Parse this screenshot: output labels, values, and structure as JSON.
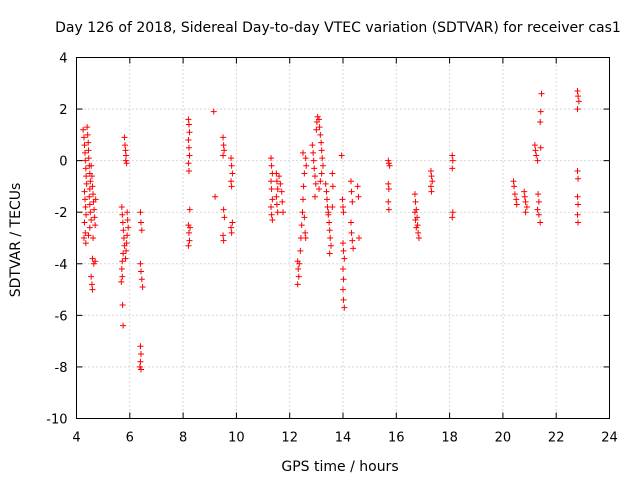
{
  "chart_data": {
    "type": "scatter",
    "title": "Day 126 of 2018, Sidereal Day-to-day VTEC variation (SDTVAR) for receiver cas1",
    "xlabel": "GPS time / hours",
    "ylabel": "SDTVAR / TECUs",
    "xlim": [
      4,
      24
    ],
    "ylim": [
      -10,
      4
    ],
    "xticks": [
      "4",
      "6",
      "8",
      "10",
      "12",
      "14",
      "16",
      "18",
      "20",
      "22",
      "24"
    ],
    "yticks": [
      "-10",
      "-8",
      "-6",
      "-4",
      "-2",
      "0",
      "2",
      "4"
    ],
    "grid": true,
    "marker": "+",
    "color": "#ff0000",
    "series": [
      {
        "name": "SDTVAR",
        "points": [
          [
            4.25,
            1.2
          ],
          [
            4.28,
            0.9
          ],
          [
            4.3,
            0.6
          ],
          [
            4.32,
            0.3
          ],
          [
            4.33,
            0.0
          ],
          [
            4.35,
            -0.3
          ],
          [
            4.36,
            -0.6
          ],
          [
            4.38,
            -0.9
          ],
          [
            4.3,
            -1.2
          ],
          [
            4.32,
            -1.5
          ],
          [
            4.34,
            -1.8
          ],
          [
            4.36,
            -2.1
          ],
          [
            4.3,
            -2.4
          ],
          [
            4.33,
            -2.8
          ],
          [
            4.28,
            -3.0
          ],
          [
            4.35,
            -3.2
          ],
          [
            4.4,
            1.3
          ],
          [
            4.42,
            1.0
          ],
          [
            4.44,
            0.7
          ],
          [
            4.45,
            0.4
          ],
          [
            4.46,
            0.1
          ],
          [
            4.48,
            -0.2
          ],
          [
            4.5,
            -0.5
          ],
          [
            4.52,
            -0.8
          ],
          [
            4.5,
            -1.1
          ],
          [
            4.48,
            -1.4
          ],
          [
            4.5,
            -1.7
          ],
          [
            4.52,
            -2.0
          ],
          [
            4.55,
            -2.3
          ],
          [
            4.5,
            -2.6
          ],
          [
            4.45,
            -2.9
          ],
          [
            4.55,
            -0.2
          ],
          [
            4.58,
            -0.6
          ],
          [
            4.6,
            -1.0
          ],
          [
            4.62,
            -1.3
          ],
          [
            4.64,
            -1.6
          ],
          [
            4.66,
            -1.9
          ],
          [
            4.68,
            -2.2
          ],
          [
            4.7,
            -2.5
          ],
          [
            4.62,
            -3.0
          ],
          [
            4.6,
            -3.8
          ],
          [
            4.65,
            -4.0
          ],
          [
            4.55,
            -4.5
          ],
          [
            4.58,
            -4.8
          ],
          [
            4.6,
            -5.0
          ],
          [
            4.7,
            -3.9
          ],
          [
            4.72,
            -1.5
          ],
          [
            5.7,
            -1.8
          ],
          [
            5.72,
            -2.1
          ],
          [
            5.74,
            -2.4
          ],
          [
            5.76,
            -2.7
          ],
          [
            5.78,
            -3.0
          ],
          [
            5.8,
            -3.3
          ],
          [
            5.75,
            -3.6
          ],
          [
            5.72,
            -3.9
          ],
          [
            5.7,
            -4.2
          ],
          [
            5.72,
            -4.5
          ],
          [
            5.68,
            -4.7
          ],
          [
            5.73,
            -5.6
          ],
          [
            5.75,
            -6.4
          ],
          [
            5.8,
            0.9
          ],
          [
            5.82,
            0.6
          ],
          [
            5.84,
            0.4
          ],
          [
            5.86,
            0.2
          ],
          [
            5.85,
            0.0
          ],
          [
            5.88,
            -0.1
          ],
          [
            5.9,
            -2.0
          ],
          [
            5.92,
            -2.3
          ],
          [
            5.94,
            -2.6
          ],
          [
            5.9,
            -2.9
          ],
          [
            5.88,
            -3.2
          ],
          [
            5.86,
            -3.5
          ],
          [
            5.84,
            -3.8
          ],
          [
            6.4,
            -2.0
          ],
          [
            6.42,
            -2.4
          ],
          [
            6.45,
            -2.7
          ],
          [
            6.4,
            -4.0
          ],
          [
            6.42,
            -4.3
          ],
          [
            6.45,
            -4.6
          ],
          [
            6.48,
            -4.9
          ],
          [
            6.4,
            -7.2
          ],
          [
            6.42,
            -7.5
          ],
          [
            6.4,
            -7.8
          ],
          [
            6.42,
            -8.1
          ],
          [
            6.38,
            -8.0
          ],
          [
            8.2,
            1.6
          ],
          [
            8.22,
            1.4
          ],
          [
            8.24,
            1.1
          ],
          [
            8.2,
            0.8
          ],
          [
            8.22,
            0.5
          ],
          [
            8.24,
            0.2
          ],
          [
            8.2,
            -0.1
          ],
          [
            8.22,
            -0.4
          ],
          [
            8.25,
            -1.9
          ],
          [
            8.2,
            -2.5
          ],
          [
            8.22,
            -2.8
          ],
          [
            8.24,
            -3.1
          ],
          [
            8.2,
            -3.3
          ],
          [
            8.26,
            -2.6
          ],
          [
            9.15,
            1.9
          ],
          [
            9.2,
            -1.4
          ],
          [
            9.5,
            0.9
          ],
          [
            9.52,
            0.6
          ],
          [
            9.54,
            0.4
          ],
          [
            9.5,
            0.2
          ],
          [
            9.52,
            -1.9
          ],
          [
            9.55,
            -2.2
          ],
          [
            9.5,
            -2.9
          ],
          [
            9.52,
            -3.1
          ],
          [
            9.8,
            0.1
          ],
          [
            9.82,
            -0.2
          ],
          [
            9.85,
            -0.5
          ],
          [
            9.8,
            -0.8
          ],
          [
            9.82,
            -1.0
          ],
          [
            9.85,
            -2.4
          ],
          [
            9.8,
            -2.6
          ],
          [
            9.82,
            -2.8
          ],
          [
            11.3,
            0.1
          ],
          [
            11.32,
            -0.2
          ],
          [
            11.35,
            -0.5
          ],
          [
            11.3,
            -0.8
          ],
          [
            11.32,
            -1.1
          ],
          [
            11.35,
            -1.5
          ],
          [
            11.3,
            -1.8
          ],
          [
            11.32,
            -2.1
          ],
          [
            11.35,
            -2.3
          ],
          [
            11.5,
            -0.5
          ],
          [
            11.52,
            -0.8
          ],
          [
            11.55,
            -1.1
          ],
          [
            11.5,
            -1.4
          ],
          [
            11.52,
            -1.7
          ],
          [
            11.55,
            -2.0
          ],
          [
            11.6,
            -0.6
          ],
          [
            11.65,
            -0.9
          ],
          [
            11.7,
            -1.2
          ],
          [
            11.72,
            -1.6
          ],
          [
            11.75,
            -2.0
          ],
          [
            12.3,
            -3.9
          ],
          [
            12.32,
            -4.2
          ],
          [
            12.34,
            -4.5
          ],
          [
            12.3,
            -4.8
          ],
          [
            12.36,
            -4.0
          ],
          [
            12.4,
            -3.5
          ],
          [
            12.42,
            -3.0
          ],
          [
            12.45,
            -2.5
          ],
          [
            12.48,
            -2.0
          ],
          [
            12.5,
            -1.5
          ],
          [
            12.52,
            -1.0
          ],
          [
            12.55,
            -0.5
          ],
          [
            12.5,
            0.3
          ],
          [
            12.6,
            0.1
          ],
          [
            12.62,
            -0.2
          ],
          [
            12.58,
            -2.8
          ],
          [
            12.6,
            -3.0
          ],
          [
            12.55,
            -2.2
          ],
          [
            12.85,
            0.6
          ],
          [
            12.88,
            0.3
          ],
          [
            12.9,
            0.0
          ],
          [
            12.92,
            -0.3
          ],
          [
            12.95,
            -0.6
          ],
          [
            12.98,
            -0.9
          ],
          [
            13.0,
            1.2
          ],
          [
            13.02,
            1.5
          ],
          [
            13.05,
            1.7
          ],
          [
            13.1,
            1.6
          ],
          [
            13.12,
            1.3
          ],
          [
            13.15,
            1.0
          ],
          [
            13.18,
            0.7
          ],
          [
            13.2,
            0.4
          ],
          [
            13.22,
            0.1
          ],
          [
            13.25,
            -0.2
          ],
          [
            13.2,
            -0.5
          ],
          [
            13.15,
            -0.8
          ],
          [
            13.1,
            -1.1
          ],
          [
            12.95,
            -1.4
          ],
          [
            13.35,
            -0.9
          ],
          [
            13.38,
            -1.2
          ],
          [
            13.4,
            -1.5
          ],
          [
            13.42,
            -1.8
          ],
          [
            13.45,
            -2.1
          ],
          [
            13.48,
            -2.4
          ],
          [
            13.5,
            -2.7
          ],
          [
            13.52,
            -3.0
          ],
          [
            13.55,
            -3.3
          ],
          [
            13.5,
            -3.6
          ],
          [
            13.45,
            -2.0
          ],
          [
            13.6,
            -0.5
          ],
          [
            13.62,
            -1.0
          ],
          [
            13.6,
            -1.8
          ],
          [
            13.95,
            0.2
          ],
          [
            13.98,
            -1.5
          ],
          [
            14.0,
            -1.8
          ],
          [
            14.02,
            -2.0
          ],
          [
            14.0,
            -3.2
          ],
          [
            14.02,
            -3.5
          ],
          [
            14.05,
            -3.8
          ],
          [
            14.0,
            -4.2
          ],
          [
            14.02,
            -4.6
          ],
          [
            14.0,
            -5.0
          ],
          [
            14.02,
            -5.4
          ],
          [
            14.05,
            -5.7
          ],
          [
            14.3,
            -0.8
          ],
          [
            14.32,
            -1.2
          ],
          [
            14.35,
            -1.6
          ],
          [
            14.3,
            -2.4
          ],
          [
            14.32,
            -2.8
          ],
          [
            14.35,
            -3.1
          ],
          [
            14.38,
            -3.4
          ],
          [
            14.55,
            -1.0
          ],
          [
            14.58,
            -1.4
          ],
          [
            14.6,
            -3.0
          ],
          [
            15.7,
            0.0
          ],
          [
            15.72,
            -0.1
          ],
          [
            15.75,
            -0.2
          ],
          [
            15.7,
            -0.9
          ],
          [
            15.72,
            -1.1
          ],
          [
            15.7,
            -1.6
          ],
          [
            15.72,
            -1.9
          ],
          [
            16.7,
            -1.3
          ],
          [
            16.72,
            -1.6
          ],
          [
            16.75,
            -1.9
          ],
          [
            16.78,
            -2.2
          ],
          [
            16.8,
            -2.5
          ],
          [
            16.82,
            -2.8
          ],
          [
            16.85,
            -3.0
          ],
          [
            16.7,
            -2.0
          ],
          [
            16.72,
            -2.3
          ],
          [
            16.75,
            -2.6
          ],
          [
            17.3,
            -0.4
          ],
          [
            17.32,
            -0.6
          ],
          [
            17.35,
            -0.8
          ],
          [
            17.3,
            -1.0
          ],
          [
            17.32,
            -1.2
          ],
          [
            18.1,
            0.2
          ],
          [
            18.12,
            0.0
          ],
          [
            18.1,
            -0.3
          ],
          [
            18.12,
            -2.0
          ],
          [
            18.1,
            -2.2
          ],
          [
            20.4,
            -0.8
          ],
          [
            20.42,
            -1.0
          ],
          [
            20.45,
            -1.3
          ],
          [
            20.5,
            -1.5
          ],
          [
            20.52,
            -1.7
          ],
          [
            20.8,
            -1.2
          ],
          [
            20.82,
            -1.4
          ],
          [
            20.85,
            -1.6
          ],
          [
            20.9,
            -1.8
          ],
          [
            20.85,
            -2.0
          ],
          [
            21.2,
            0.6
          ],
          [
            21.22,
            0.4
          ],
          [
            21.25,
            0.2
          ],
          [
            21.3,
            0.0
          ],
          [
            21.32,
            -1.3
          ],
          [
            21.35,
            -1.6
          ],
          [
            21.3,
            -1.9
          ],
          [
            21.35,
            -2.1
          ],
          [
            21.4,
            -2.4
          ],
          [
            21.4,
            1.5
          ],
          [
            21.42,
            1.9
          ],
          [
            21.45,
            2.6
          ],
          [
            21.42,
            0.5
          ],
          [
            22.8,
            2.7
          ],
          [
            22.82,
            2.5
          ],
          [
            22.85,
            2.3
          ],
          [
            22.8,
            2.0
          ],
          [
            22.8,
            -0.4
          ],
          [
            22.82,
            -0.7
          ],
          [
            22.8,
            -1.4
          ],
          [
            22.82,
            -1.7
          ],
          [
            22.8,
            -2.1
          ],
          [
            22.82,
            -2.4
          ]
        ]
      }
    ]
  }
}
